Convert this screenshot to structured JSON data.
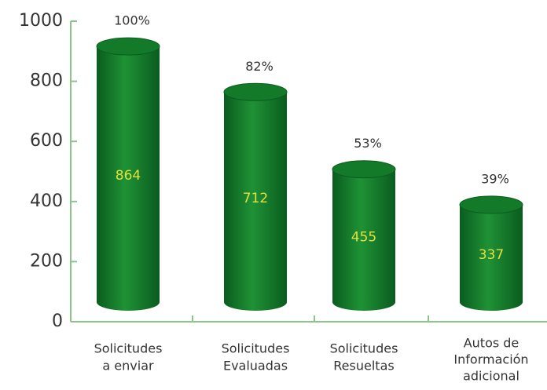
{
  "chart_data": {
    "type": "cylinder_bar",
    "categories": [
      [
        "Solicitudes",
        "a enviar"
      ],
      [
        "Solicitudes",
        "Evaluadas"
      ],
      [
        "Solicitudes",
        "Resueltas"
      ],
      [
        "Autos de",
        "Información",
        "adicional"
      ]
    ],
    "values": [
      864,
      712,
      455,
      337
    ],
    "percent_labels": [
      "100%",
      "82%",
      "53%",
      "39%"
    ],
    "color": "#137a2a",
    "ylim": [
      0,
      1000
    ],
    "yticks": [
      0,
      200,
      400,
      600,
      800,
      1000
    ],
    "grid": false
  }
}
